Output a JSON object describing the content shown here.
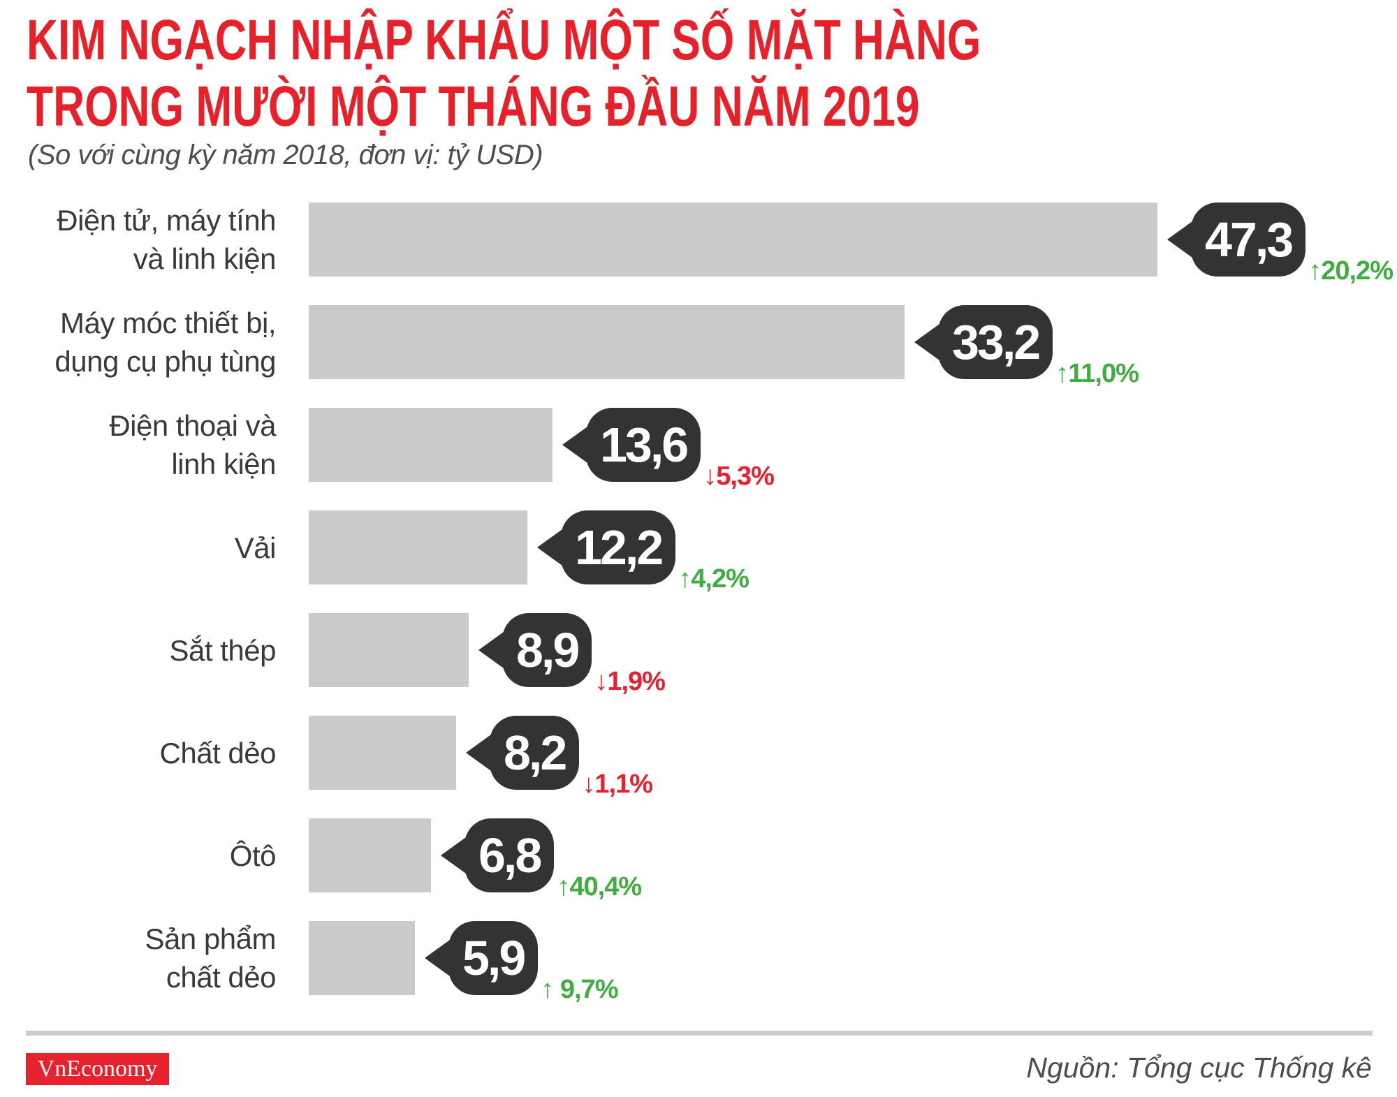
{
  "header": {
    "title_line1": "KIM NGẠCH NHẬP KHẨU MỘT SỐ MẶT HÀNG",
    "title_line2": "TRONG MƯỜI MỘT THÁNG ĐẦU NĂM 2019",
    "subtitle": "(So với cùng kỳ năm 2018, đơn vị: tỷ USD)"
  },
  "chart_data": {
    "type": "bar",
    "orientation": "horizontal",
    "title": "KIM NGẠCH NHẬP KHẨU MỘT SỐ MẶT HÀNG TRONG MƯỜI MỘT THÁNG ĐẦU NĂM 2019",
    "subtitle": "(So với cùng kỳ năm 2018, đơn vị: tỷ USD)",
    "unit": "tỷ USD",
    "comparison_base": "cùng kỳ năm 2018",
    "xlim": [
      0,
      50
    ],
    "grid": false,
    "legend": false,
    "bar_color": "#cbcbcb",
    "badge_color": "#333333",
    "up_color": "#41ad41",
    "down_color": "#e8212e",
    "title_color": "#e62129",
    "categories": [
      "Điện tử, máy tính và linh kiện",
      "Máy móc thiết bị, dụng cụ phụ tùng",
      "Điện thoại và linh kiện",
      "Vải",
      "Sắt thép",
      "Chất dẻo",
      "Ôtô",
      "Sản phẩm chất dẻo"
    ],
    "values": [
      47.3,
      33.2,
      13.6,
      12.2,
      8.9,
      8.2,
      6.8,
      5.9
    ],
    "rows": [
      {
        "label": "Điện tử, máy tính\nvà linh kiện",
        "value": 47.3,
        "value_label": "47,3",
        "arrow": "↑",
        "change": "20,2%",
        "direction": "up"
      },
      {
        "label": "Máy móc thiết bị,\ndụng cụ phụ tùng",
        "value": 33.2,
        "value_label": "33,2",
        "arrow": "↑",
        "change": "11,0%",
        "direction": "up"
      },
      {
        "label": "Điện thoại và\nlinh kiện",
        "value": 13.6,
        "value_label": "13,6",
        "arrow": "↓",
        "change": "5,3%",
        "direction": "down"
      },
      {
        "label": "Vải",
        "value": 12.2,
        "value_label": "12,2",
        "arrow": "↑",
        "change": "4,2%",
        "direction": "up"
      },
      {
        "label": "Sắt thép",
        "value": 8.9,
        "value_label": "8,9",
        "arrow": "↓",
        "change": "1,9%",
        "direction": "down"
      },
      {
        "label": "Chất dẻo",
        "value": 8.2,
        "value_label": "8,2",
        "arrow": "↓",
        "change": "1,1%",
        "direction": "down"
      },
      {
        "label": "Ôtô",
        "value": 6.8,
        "value_label": "6,8",
        "arrow": "↑",
        "change": "40,4%",
        "direction": "up"
      },
      {
        "label": "Sản phẩm\nchất dẻo",
        "value": 5.9,
        "value_label": "5,9",
        "arrow": "↑",
        "change": " 9,7%",
        "direction": "up"
      }
    ]
  },
  "footer": {
    "logo_text": "VnEconomy",
    "source": "Nguồn: Tổng cục Thống kê"
  }
}
